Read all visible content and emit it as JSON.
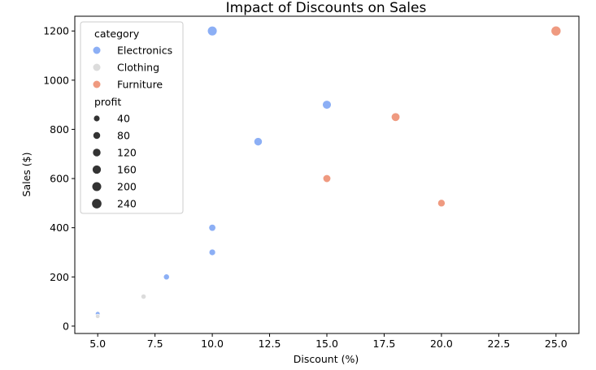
{
  "chart_data": {
    "type": "scatter",
    "title": "Impact of Discounts on Sales",
    "xlabel": "Discount (%)",
    "ylabel": "Sales ($)",
    "xlim": [
      4.0,
      26.0
    ],
    "ylim": [
      -30,
      1260
    ],
    "xticks": [
      5.0,
      7.5,
      10.0,
      12.5,
      15.0,
      17.5,
      20.0,
      22.5,
      25.0
    ],
    "xtick_labels": [
      "5.0",
      "7.5",
      "10.0",
      "12.5",
      "15.0",
      "17.5",
      "20.0",
      "22.5",
      "25.0"
    ],
    "yticks": [
      0,
      200,
      400,
      600,
      800,
      1000,
      1200
    ],
    "ytick_labels": [
      "0",
      "200",
      "400",
      "600",
      "800",
      "1000",
      "1200"
    ],
    "grid": false,
    "legend": {
      "placement": "top-left",
      "hue_title": "category",
      "categories": [
        {
          "name": "Electronics",
          "color": "#8caff5"
        },
        {
          "name": "Clothing",
          "color": "#dcdcdc"
        },
        {
          "name": "Furniture",
          "color": "#ef9a80"
        }
      ],
      "size_title": "profit",
      "size_levels": [
        40,
        80,
        120,
        160,
        200,
        240
      ],
      "size_labels": [
        "40",
        "80",
        "120",
        "160",
        "200",
        "240"
      ],
      "size_color": "#333333"
    },
    "series": [
      {
        "name": "Electronics",
        "color": "#8caff5",
        "points": [
          {
            "x": 5,
            "y": 50,
            "profit": 10
          },
          {
            "x": 8,
            "y": 200,
            "profit": 40
          },
          {
            "x": 10,
            "y": 300,
            "profit": 60
          },
          {
            "x": 10,
            "y": 400,
            "profit": 80
          },
          {
            "x": 12,
            "y": 750,
            "profit": 150
          },
          {
            "x": 15,
            "y": 900,
            "profit": 180
          },
          {
            "x": 10,
            "y": 1200,
            "profit": 240
          }
        ]
      },
      {
        "name": "Clothing",
        "color": "#dcdcdc",
        "points": [
          {
            "x": 5,
            "y": 40,
            "profit": 8
          },
          {
            "x": 7,
            "y": 120,
            "profit": 20
          }
        ]
      },
      {
        "name": "Furniture",
        "color": "#ef9a80",
        "points": [
          {
            "x": 20,
            "y": 500,
            "profit": 100
          },
          {
            "x": 15,
            "y": 600,
            "profit": 120
          },
          {
            "x": 18,
            "y": 850,
            "profit": 170
          },
          {
            "x": 25,
            "y": 1200,
            "profit": 260
          }
        ]
      }
    ]
  }
}
